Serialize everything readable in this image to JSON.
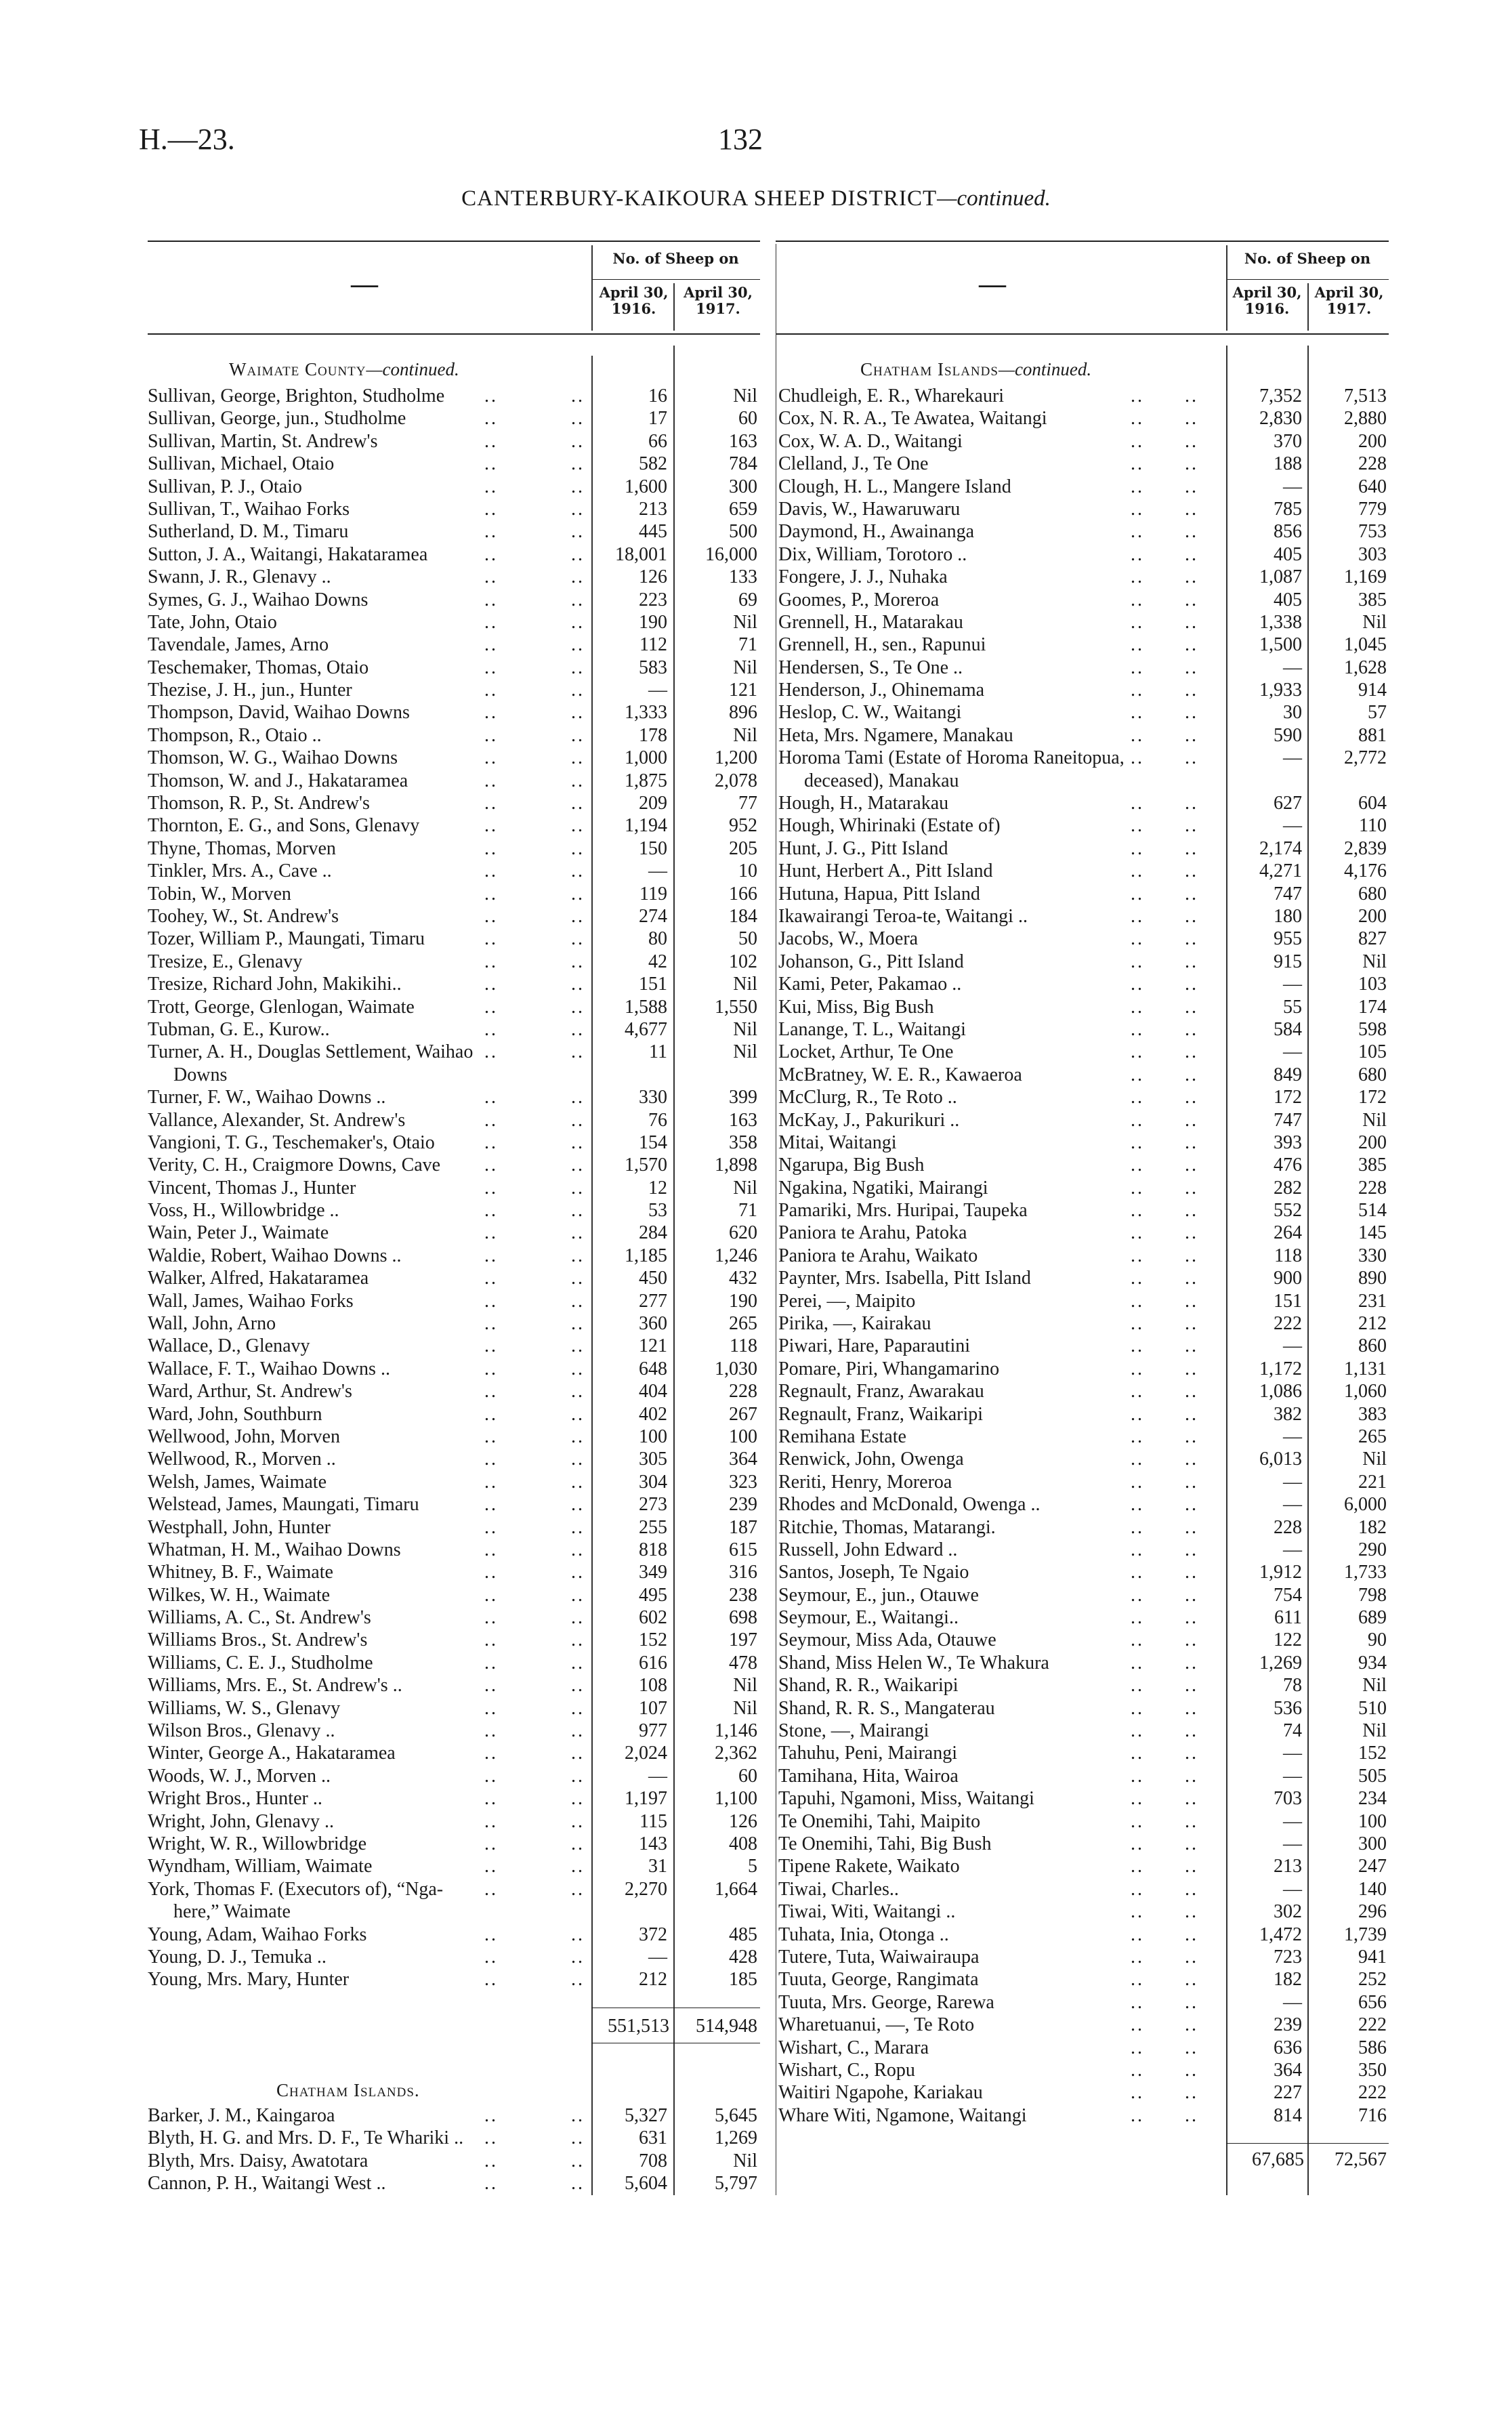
{
  "header": {
    "code": "H.—23.",
    "page": "132",
    "title": "CANTERBURY-KAIKOURA SHEEP DISTRICT",
    "title_suffix": "—continued."
  },
  "columns": {
    "dash": "—",
    "group": "No. of Sheep on",
    "col1": "April 30, 1916.",
    "col2": "April 30, 1917."
  },
  "left": {
    "section": "Waimate County",
    "section_suffix": "—continued.",
    "rows": [
      [
        "Sullivan, George, Brighton, Studholme",
        "16",
        "Nil"
      ],
      [
        "Sullivan, George, jun., Studholme",
        "17",
        "60"
      ],
      [
        "Sullivan, Martin, St. Andrew's",
        "66",
        "163"
      ],
      [
        "Sullivan, Michael, Otaio",
        "582",
        "784"
      ],
      [
        "Sullivan, P. J., Otaio",
        "1,600",
        "300"
      ],
      [
        "Sullivan, T., Waihao Forks",
        "213",
        "659"
      ],
      [
        "Sutherland, D. M., Timaru",
        "445",
        "500"
      ],
      [
        "Sutton, J. A., Waitangi, Hakataramea",
        "18,001",
        "16,000"
      ],
      [
        "Swann, J. R., Glenavy ..",
        "126",
        "133"
      ],
      [
        "Symes, G. J., Waihao Downs",
        "223",
        "69"
      ],
      [
        "Tate, John, Otaio",
        "190",
        "Nil"
      ],
      [
        "Tavendale, James, Arno",
        "112",
        "71"
      ],
      [
        "Teschemaker, Thomas, Otaio",
        "583",
        "Nil"
      ],
      [
        "Thezise, J. H., jun., Hunter",
        "—",
        "121"
      ],
      [
        "Thompson, David, Waihao Downs",
        "1,333",
        "896"
      ],
      [
        "Thompson, R., Otaio ..",
        "178",
        "Nil"
      ],
      [
        "Thomson, W. G., Waihao Downs",
        "1,000",
        "1,200"
      ],
      [
        "Thomson, W. and J., Hakataramea",
        "1,875",
        "2,078"
      ],
      [
        "Thomson, R. P., St. Andrew's",
        "209",
        "77"
      ],
      [
        "Thornton, E. G., and Sons, Glenavy",
        "1,194",
        "952"
      ],
      [
        "Thyne, Thomas, Morven",
        "150",
        "205"
      ],
      [
        "Tinkler, Mrs. A., Cave ..",
        "—",
        "10"
      ],
      [
        "Tobin, W., Morven",
        "119",
        "166"
      ],
      [
        "Toohey, W., St. Andrew's",
        "274",
        "184"
      ],
      [
        "Tozer, William P., Maungati, Timaru",
        "80",
        "50"
      ],
      [
        "Tresize, E., Glenavy",
        "42",
        "102"
      ],
      [
        "Tresize, Richard John, Makikihi..",
        "151",
        "Nil"
      ],
      [
        "Trott, George, Glenlogan, Waimate",
        "1,588",
        "1,550"
      ],
      [
        "Tubman, G. E., Kurow..",
        "4,677",
        "Nil"
      ],
      [
        "Turner, A. H., Douglas Settlement, Waihao",
        "11",
        "Nil",
        "Downs"
      ],
      [
        "Turner, F. W., Waihao Downs ..",
        "330",
        "399"
      ],
      [
        "Vallance, Alexander, St. Andrew's",
        "76",
        "163"
      ],
      [
        "Vangioni, T. G., Teschemaker's, Otaio",
        "154",
        "358"
      ],
      [
        "Verity, C. H., Craigmore Downs, Cave",
        "1,570",
        "1,898"
      ],
      [
        "Vincent, Thomas J., Hunter",
        "12",
        "Nil"
      ],
      [
        "Voss, H., Willowbridge ..",
        "53",
        "71"
      ],
      [
        "Wain, Peter J., Waimate",
        "284",
        "620"
      ],
      [
        "Waldie, Robert, Waihao Downs ..",
        "1,185",
        "1,246"
      ],
      [
        "Walker, Alfred, Hakataramea",
        "450",
        "432"
      ],
      [
        "Wall, James, Waihao Forks",
        "277",
        "190"
      ],
      [
        "Wall, John, Arno",
        "360",
        "265"
      ],
      [
        "Wallace, D., Glenavy",
        "121",
        "118"
      ],
      [
        "Wallace, F. T., Waihao Downs ..",
        "648",
        "1,030"
      ],
      [
        "Ward, Arthur, St. Andrew's",
        "404",
        "228"
      ],
      [
        "Ward, John, Southburn",
        "402",
        "267"
      ],
      [
        "Wellwood, John, Morven",
        "100",
        "100"
      ],
      [
        "Wellwood, R., Morven ..",
        "305",
        "364"
      ],
      [
        "Welsh, James, Waimate",
        "304",
        "323"
      ],
      [
        "Welstead, James, Maungati, Timaru",
        "273",
        "239"
      ],
      [
        "Westphall, John, Hunter",
        "255",
        "187"
      ],
      [
        "Whatman, H. M., Waihao Downs",
        "818",
        "615"
      ],
      [
        "Whitney, B. F., Waimate",
        "349",
        "316"
      ],
      [
        "Wilkes, W. H., Waimate",
        "495",
        "238"
      ],
      [
        "Williams, A. C., St. Andrew's",
        "602",
        "698"
      ],
      [
        "Williams Bros., St. Andrew's",
        "152",
        "197"
      ],
      [
        "Williams, C. E. J., Studholme",
        "616",
        "478"
      ],
      [
        "Williams, Mrs. E., St. Andrew's ..",
        "108",
        "Nil"
      ],
      [
        "Williams, W. S., Glenavy",
        "107",
        "Nil"
      ],
      [
        "Wilson Bros., Glenavy ..",
        "977",
        "1,146"
      ],
      [
        "Winter, George A., Hakataramea",
        "2,024",
        "2,362"
      ],
      [
        "Woods, W. J., Morven ..",
        "—",
        "60"
      ],
      [
        "Wright Bros., Hunter ..",
        "1,197",
        "1,100"
      ],
      [
        "Wright, John, Glenavy ..",
        "115",
        "126"
      ],
      [
        "Wright, W. R., Willowbridge",
        "143",
        "408"
      ],
      [
        "Wyndham, William, Waimate",
        "31",
        "5"
      ],
      [
        "York, Thomas F. (Executors of), “Nga-",
        "2,270",
        "1,664",
        "here,” Waimate"
      ],
      [
        "Young, Adam, Waihao Forks",
        "372",
        "485"
      ],
      [
        "Young, D. J., Temuka ..",
        "—",
        "428"
      ],
      [
        "Young, Mrs. Mary, Hunter",
        "212",
        "185"
      ]
    ],
    "total": [
      "551,513",
      "514,948"
    ],
    "section2": "Chatham Islands.",
    "rows2": [
      [
        "Barker, J. M., Kaingaroa",
        "5,327",
        "5,645"
      ],
      [
        "Blyth, H. G. and Mrs. D. F., Te Whariki ..",
        "631",
        "1,269"
      ],
      [
        "Blyth, Mrs. Daisy, Awatotara",
        "708",
        "Nil"
      ],
      [
        "Cannon, P. H., Waitangi West ..",
        "5,604",
        "5,797"
      ]
    ]
  },
  "right": {
    "section": "Chatham Islands",
    "section_suffix": "—continued.",
    "rows": [
      [
        "Chudleigh, E. R., Wharekauri",
        "7,352",
        "7,513"
      ],
      [
        "Cox, N. R. A., Te Awatea, Waitangi",
        "2,830",
        "2,880"
      ],
      [
        "Cox, W. A. D., Waitangi",
        "370",
        "200"
      ],
      [
        "Clelland, J., Te One",
        "188",
        "228"
      ],
      [
        "Clough, H. L., Mangere Island",
        "—",
        "640"
      ],
      [
        "Davis, W., Hawaruwaru",
        "785",
        "779"
      ],
      [
        "Daymond, H., Awainanga",
        "856",
        "753"
      ],
      [
        "Dix, William, Torotoro ..",
        "405",
        "303"
      ],
      [
        "Fongere, J. J., Nuhaka",
        "1,087",
        "1,169"
      ],
      [
        "Goomes, P., Moreroa",
        "405",
        "385"
      ],
      [
        "Grennell, H., Matarakau",
        "1,338",
        "Nil"
      ],
      [
        "Grennell, H., sen., Rapunui",
        "1,500",
        "1,045"
      ],
      [
        "Hendersen, S., Te One ..",
        "—",
        "1,628"
      ],
      [
        "Henderson, J., Ohinemama",
        "1,933",
        "914"
      ],
      [
        "Heslop, C. W., Waitangi",
        "30",
        "57"
      ],
      [
        "Heta, Mrs. Ngamere, Manakau",
        "590",
        "881"
      ],
      [
        "Horoma Tami (Estate of Horoma Raneitopua,",
        "—",
        "2,772",
        "deceased), Manakau"
      ],
      [
        "Hough, H., Matarakau",
        "627",
        "604"
      ],
      [
        "Hough, Whirinaki (Estate of)",
        "—",
        "110"
      ],
      [
        "Hunt, J. G., Pitt Island",
        "2,174",
        "2,839"
      ],
      [
        "Hunt, Herbert A., Pitt Island",
        "4,271",
        "4,176"
      ],
      [
        "Hutuna, Hapua, Pitt Island",
        "747",
        "680"
      ],
      [
        "Ikawairangi Teroa-te, Waitangi ..",
        "180",
        "200"
      ],
      [
        "Jacobs, W., Moera",
        "955",
        "827"
      ],
      [
        "Johanson, G., Pitt Island",
        "915",
        "Nil"
      ],
      [
        "Kami, Peter, Pakamao ..",
        "—",
        "103"
      ],
      [
        "Kui, Miss, Big Bush",
        "55",
        "174"
      ],
      [
        "Lanange, T. L., Waitangi",
        "584",
        "598"
      ],
      [
        "Locket, Arthur, Te One",
        "—",
        "105"
      ],
      [
        "McBratney, W. E. R., Kawaeroa",
        "849",
        "680"
      ],
      [
        "McClurg, R., Te Roto ..",
        "172",
        "172"
      ],
      [
        "McKay, J., Pakurikuri ..",
        "747",
        "Nil"
      ],
      [
        "Mitai, Waitangi",
        "393",
        "200"
      ],
      [
        "Ngarupa, Big Bush",
        "476",
        "385"
      ],
      [
        "Ngakina, Ngatiki, Mairangi",
        "282",
        "228"
      ],
      [
        "Pamariki, Mrs. Huripai, Taupeka",
        "552",
        "514"
      ],
      [
        "Paniora te Arahu, Patoka",
        "264",
        "145"
      ],
      [
        "Paniora te Arahu, Waikato",
        "118",
        "330"
      ],
      [
        "Paynter, Mrs. Isabella, Pitt Island",
        "900",
        "890"
      ],
      [
        "Perei, —, Maipito",
        "151",
        "231"
      ],
      [
        "Pirika, —, Kairakau",
        "222",
        "212"
      ],
      [
        "Piwari, Hare, Paparautini",
        "—",
        "860"
      ],
      [
        "Pomare, Piri, Whangamarino",
        "1,172",
        "1,131"
      ],
      [
        "Regnault, Franz, Awarakau",
        "1,086",
        "1,060"
      ],
      [
        "Regnault, Franz, Waikaripi",
        "382",
        "383"
      ],
      [
        "Remihana Estate",
        "—",
        "265"
      ],
      [
        "Renwick, John, Owenga",
        "6,013",
        "Nil"
      ],
      [
        "Reriti, Henry, Moreroa",
        "—",
        "221"
      ],
      [
        "Rhodes and McDonald, Owenga ..",
        "—",
        "6,000"
      ],
      [
        "Ritchie, Thomas, Matarangi.",
        "228",
        "182"
      ],
      [
        "Russell, John Edward ..",
        "—",
        "290"
      ],
      [
        "Santos, Joseph, Te Ngaio",
        "1,912",
        "1,733"
      ],
      [
        "Seymour, E., jun., Otauwe",
        "754",
        "798"
      ],
      [
        "Seymour, E., Waitangi..",
        "611",
        "689"
      ],
      [
        "Seymour, Miss Ada, Otauwe",
        "122",
        "90"
      ],
      [
        "Shand, Miss Helen W., Te Whakura",
        "1,269",
        "934"
      ],
      [
        "Shand, R. R., Waikaripi",
        "78",
        "Nil"
      ],
      [
        "Shand, R. R. S., Mangaterau",
        "536",
        "510"
      ],
      [
        "Stone, —, Mairangi",
        "74",
        "Nil"
      ],
      [
        "Tahuhu, Peni, Mairangi",
        "—",
        "152"
      ],
      [
        "Tamihana, Hita, Wairoa",
        "—",
        "505"
      ],
      [
        "Tapuhi, Ngamoni, Miss, Waitangi",
        "703",
        "234"
      ],
      [
        "Te Onemihi, Tahi, Maipito",
        "—",
        "100"
      ],
      [
        "Te Onemihi, Tahi, Big Bush",
        "—",
        "300"
      ],
      [
        "Tipene Rakete, Waikato",
        "213",
        "247"
      ],
      [
        "Tiwai, Charles..",
        "—",
        "140"
      ],
      [
        "Tiwai, Witi, Waitangi ..",
        "302",
        "296"
      ],
      [
        "Tuhata, Inia, Otonga ..",
        "1,472",
        "1,739"
      ],
      [
        "Tutere, Tuta, Waiwairaupa",
        "723",
        "941"
      ],
      [
        "Tuuta, George, Rangimata",
        "182",
        "252"
      ],
      [
        "Tuuta, Mrs. George, Rarewa",
        "—",
        "656"
      ],
      [
        "Wharetuanui, —, Te Roto",
        "239",
        "222"
      ],
      [
        "Wishart, C., Marara",
        "636",
        "586"
      ],
      [
        "Wishart, C., Ropu",
        "364",
        "350"
      ],
      [
        "Waitiri Ngapohe, Kariakau",
        "227",
        "222"
      ],
      [
        "Whare Witi, Ngamone, Waitangi",
        "814",
        "716"
      ]
    ],
    "total": [
      "67,685",
      "72,567"
    ]
  }
}
